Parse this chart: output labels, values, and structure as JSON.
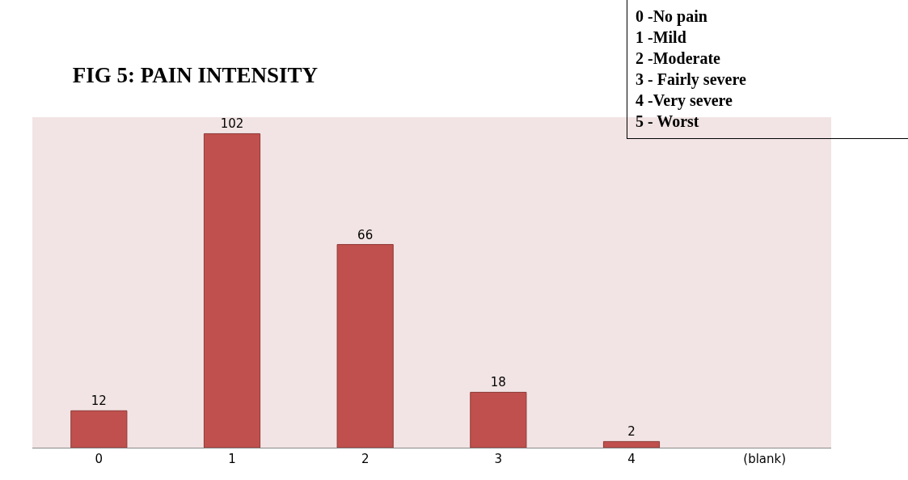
{
  "chart_data": {
    "type": "bar",
    "title": "FIG 5: PAIN INTENSITY",
    "categories": [
      "0",
      "1",
      "2",
      "3",
      "4",
      "(blank)"
    ],
    "values": [
      12,
      102,
      66,
      18,
      2,
      null
    ],
    "color": "#c0504d",
    "data_labels": true,
    "tick_labels": "x",
    "annotations": [
      "0 -No pain",
      "1 -Mild",
      "2 -Moderate",
      "3 - Fairly severe",
      "4 -Very severe",
      "5 - Worst"
    ]
  }
}
